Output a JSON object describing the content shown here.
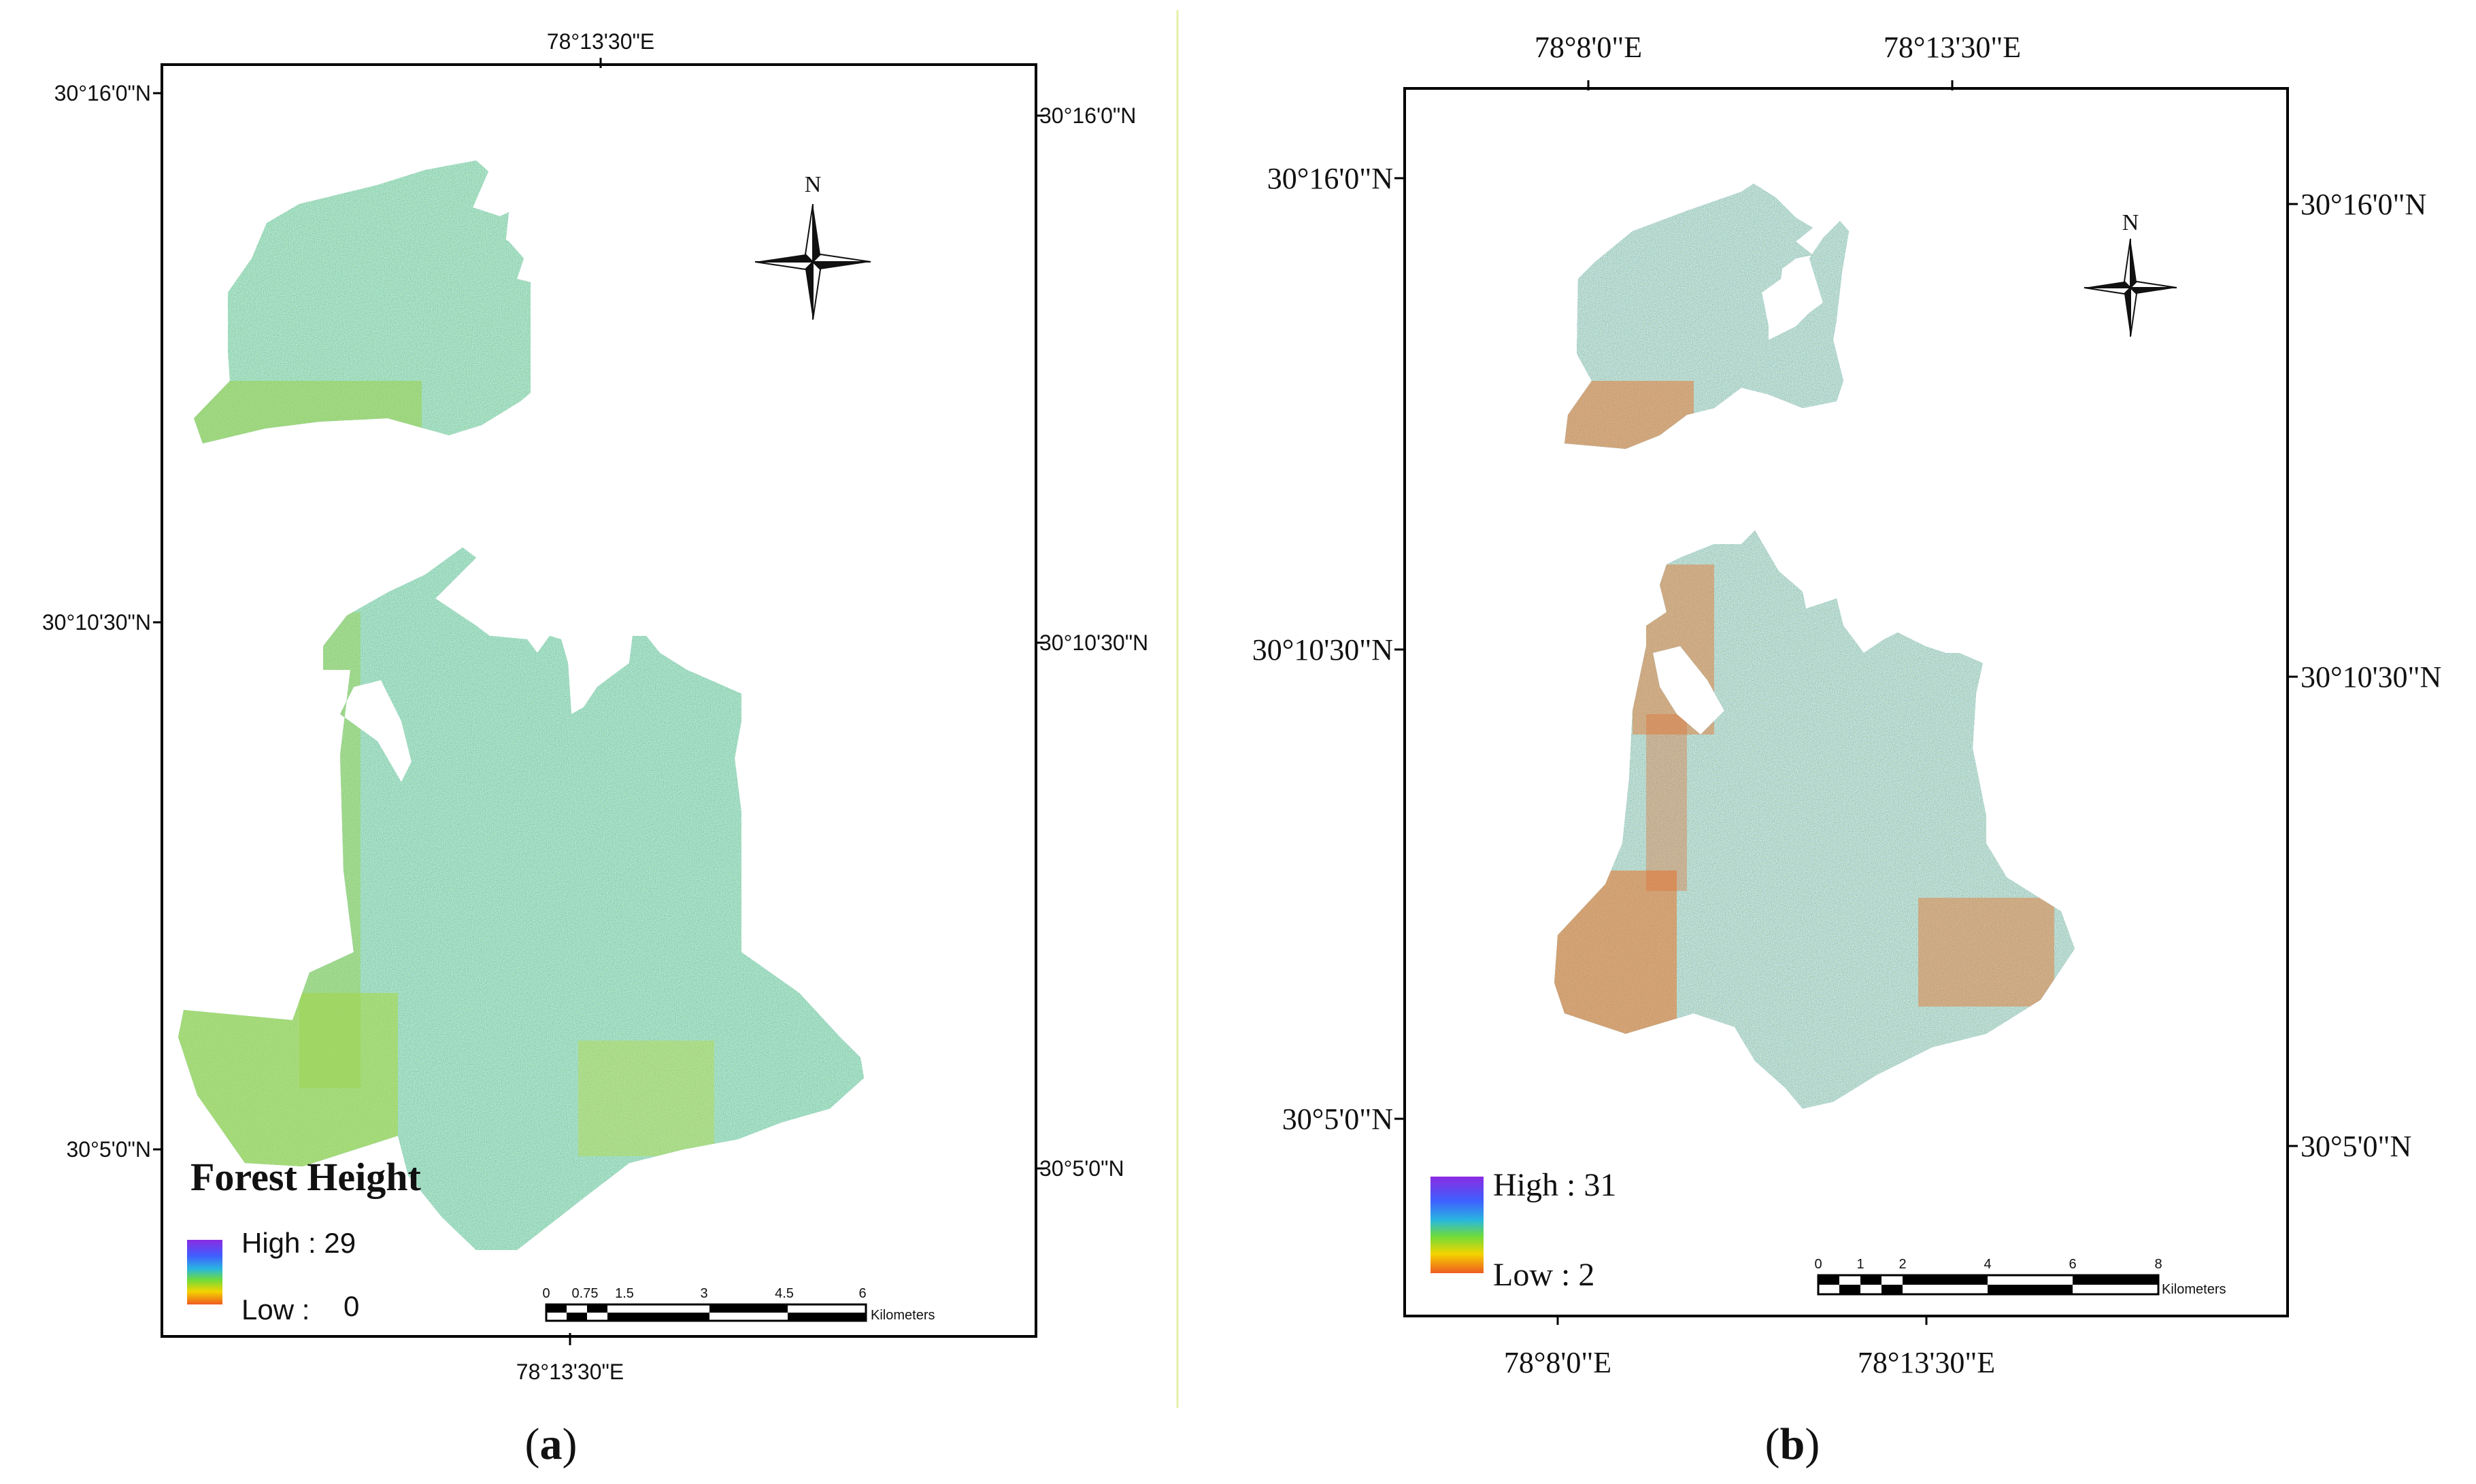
{
  "panel_a": {
    "caption_letter": "a",
    "title": "Forest Height",
    "legend": {
      "high_label": "High : 29",
      "low_label": "Low :",
      "low_value": "0"
    },
    "top_lon_label": "78°13'30\"E",
    "bottom_lon_label": "78°13'30\"E",
    "left_lat_labels": [
      "30°16'0\"N",
      "30°10'30\"N",
      "30°5'0\"N"
    ],
    "right_lat_labels": [
      "30°16'0\"N",
      "30°10'30\"N",
      "30°5'0\"N"
    ],
    "north_label": "N",
    "scale": {
      "ticks": [
        "0",
        "0.75",
        "1.5",
        "3",
        "4.5",
        "6"
      ],
      "unit": "Kilometers"
    }
  },
  "panel_b": {
    "caption_letter": "b",
    "legend": {
      "high_label": "High : 31",
      "low_label": "Low : 2"
    },
    "top_lon_labels": [
      "78°8'0\"E",
      "78°13'30\"E"
    ],
    "bottom_lon_labels": [
      "78°8'0\"E",
      "78°13'30\"E"
    ],
    "left_lat_labels": [
      "30°16'0\"N",
      "30°10'30\"N",
      "30°5'0\"N"
    ],
    "right_lat_labels": [
      "30°16'0\"N",
      "30°10'30\"N",
      "30°5'0\"N"
    ],
    "north_label": "N",
    "scale": {
      "ticks": [
        "0",
        "1",
        "2",
        "4",
        "6",
        "8"
      ],
      "unit": "Kilometers"
    }
  },
  "colors": {
    "raster_teal": "#3f9d8c",
    "raster_green": "#9bd24b",
    "raster_blue": "#3f7cc8",
    "raster_orange": "#e8742a",
    "legend_ramp": [
      "#8a2be2",
      "#3f5fff",
      "#29b6e0",
      "#6fdc3a",
      "#f4d400",
      "#ef5b20"
    ]
  }
}
